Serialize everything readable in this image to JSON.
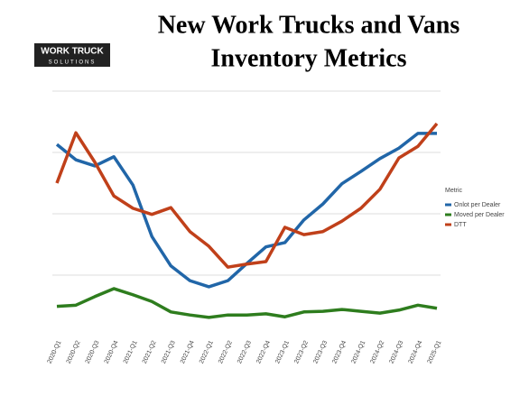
{
  "logo": [
    "WORK TRUCK",
    "SOLUTIONS"
  ],
  "chart_data": {
    "type": "line",
    "title": [
      "New Work Trucks and Vans",
      "Inventory Metrics"
    ],
    "legend_title": "Metric",
    "categories": [
      "2020-Q1",
      "2020-Q2",
      "2020-Q3",
      "2020-Q4",
      "2021-Q1",
      "2021-Q2",
      "2021-Q3",
      "2021-Q4",
      "2022-Q1",
      "2022-Q2",
      "2022-Q3",
      "2022-Q4",
      "2023-Q1",
      "2023-Q2",
      "2023-Q3",
      "2023-Q4",
      "2024-Q1",
      "2024-Q2",
      "2024-Q3",
      "2024-Q4",
      "2025-Q1"
    ],
    "series": [
      {
        "name": "Onlot per Dealer",
        "color": "#2166a8",
        "values": [
          3.13,
          2.88,
          2.78,
          2.93,
          2.47,
          1.63,
          1.15,
          0.91,
          0.81,
          0.91,
          1.19,
          1.46,
          1.53,
          1.9,
          2.16,
          2.49,
          2.69,
          2.9,
          3.07,
          3.31,
          3.31
        ]
      },
      {
        "name": "Moved per Dealer",
        "color": "#2e7d1e",
        "values": [
          0.49,
          0.51,
          0.65,
          0.78,
          0.68,
          0.57,
          0.4,
          0.35,
          0.31,
          0.35,
          0.35,
          0.37,
          0.32,
          0.4,
          0.41,
          0.44,
          0.41,
          0.38,
          0.43,
          0.51,
          0.46
        ]
      },
      {
        "name": "DTT",
        "color": "#c0401a",
        "values": [
          2.5,
          3.32,
          2.84,
          2.29,
          2.09,
          1.99,
          2.1,
          1.71,
          1.47,
          1.13,
          1.18,
          1.22,
          1.78,
          1.66,
          1.71,
          1.88,
          2.09,
          2.4,
          2.91,
          3.1,
          3.47
        ]
      }
    ],
    "ylim": [
      0,
      4
    ],
    "yticks": [
      1,
      2,
      3,
      4
    ],
    "grid": true,
    "legend": "right"
  }
}
